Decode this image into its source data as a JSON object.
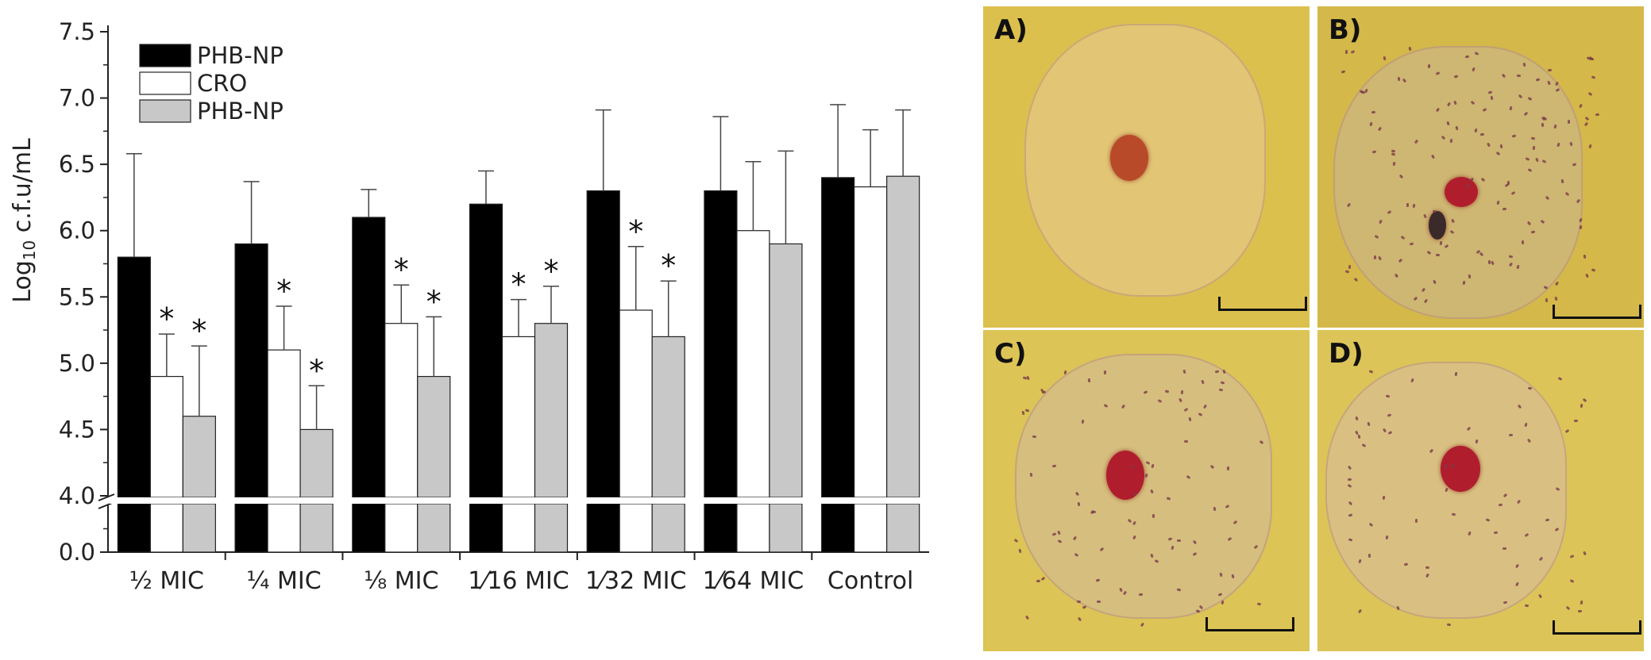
{
  "chart_data": {
    "type": "bar",
    "ylabel": "Log10 c.f.u/mL",
    "ylabel_parts": {
      "prefix": "Log",
      "sub": "10",
      "suffix": " c.f.u/mL"
    },
    "categories": [
      "½ MIC",
      "¼ MIC",
      "⅛ MIC",
      "1⁄16 MIC",
      "1⁄32 MIC",
      "1⁄64 MIC",
      "Control"
    ],
    "y_ticks": [
      "0.0",
      "4.0",
      "4.5",
      "5.0",
      "5.5",
      "6.0",
      "6.5",
      "7.0",
      "7.5"
    ],
    "y_tick_values": [
      0,
      4.0,
      4.5,
      5.0,
      5.5,
      6.0,
      6.5,
      7.0,
      7.5
    ],
    "ylim_lower": [
      0,
      0.75
    ],
    "ylim_upper": [
      4.0,
      7.5
    ],
    "axis_break": "between 0.0 and 4.0",
    "legend_position": "top-left",
    "series": [
      {
        "name": "PHB-NP",
        "color": "#000000",
        "values": [
          5.8,
          5.9,
          6.1,
          6.2,
          6.3,
          6.3,
          6.4
        ],
        "errors": [
          0.78,
          0.47,
          0.21,
          0.25,
          0.61,
          0.56,
          0.55
        ],
        "significant": [
          false,
          false,
          false,
          false,
          false,
          false,
          false
        ]
      },
      {
        "name": "CRO",
        "color": "#ffffff",
        "values": [
          4.9,
          5.1,
          5.3,
          5.2,
          5.4,
          6.0,
          6.33
        ],
        "errors": [
          0.32,
          0.33,
          0.29,
          0.28,
          0.48,
          0.52,
          0.43
        ],
        "significant": [
          true,
          true,
          true,
          true,
          true,
          false,
          false
        ]
      },
      {
        "name": "PHB-NP",
        "color": "#c8c8c8",
        "values": [
          4.6,
          4.5,
          4.9,
          5.3,
          5.2,
          5.9,
          6.41
        ],
        "errors": [
          0.53,
          0.33,
          0.45,
          0.28,
          0.42,
          0.7,
          0.5
        ],
        "significant": [
          true,
          true,
          true,
          true,
          true,
          false,
          false
        ]
      }
    ],
    "significance_marker": "*"
  },
  "micrograph_panels": [
    {
      "label": "A)",
      "scale_bar": true
    },
    {
      "label": "B)",
      "scale_bar": true
    },
    {
      "label": "C)",
      "scale_bar": true
    },
    {
      "label": "D)",
      "scale_bar": true
    }
  ],
  "colors": {
    "panel_background": "#d9bc4a",
    "nucleus": "#b01e2e"
  }
}
